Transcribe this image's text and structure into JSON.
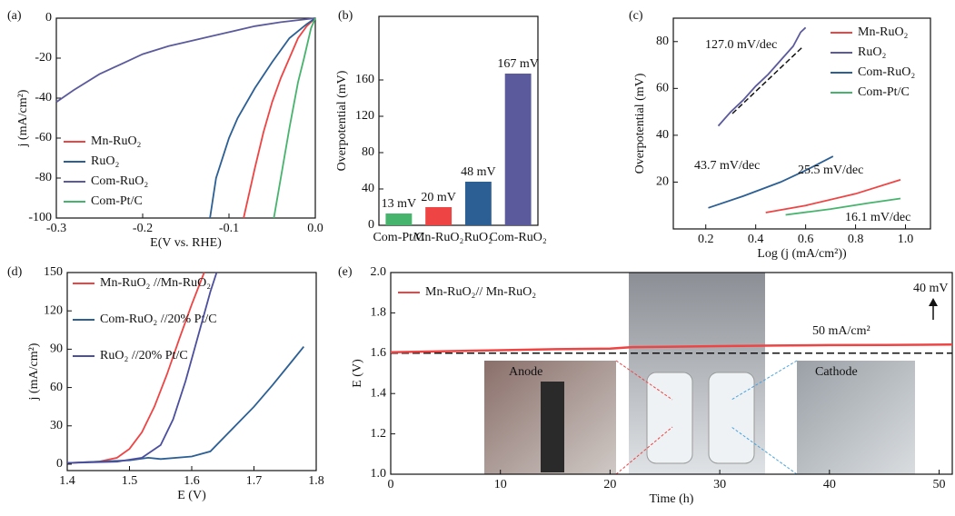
{
  "chart_data": [
    {
      "type": "line",
      "panel": "(a)",
      "x_label": "E(V vs. RHE)",
      "y_label": "j (mA/cm²)",
      "xlim": [
        -0.3,
        0.0
      ],
      "ylim": [
        -100,
        0
      ],
      "xticks": [
        -0.3,
        -0.2,
        -0.1,
        {
          "value": 0.0,
          "label": "0.0"
        }
      ],
      "yticks": [
        0,
        -20,
        -40,
        -60,
        -80,
        -100
      ],
      "legend": "lower left",
      "series": [
        {
          "name": "Mn-RuO₂",
          "color": "#ef4444",
          "x": [
            -0.083,
            -0.07,
            -0.06,
            -0.05,
            -0.04,
            -0.03,
            -0.02,
            -0.01,
            0
          ],
          "values": [
            -100,
            -75,
            -57,
            -42,
            -30,
            -20,
            -10,
            -4,
            0
          ]
        },
        {
          "name": "RuO₂",
          "color": "#2c5f94",
          "x": [
            -0.122,
            -0.115,
            -0.1,
            -0.09,
            -0.07,
            -0.05,
            -0.03,
            -0.01,
            0
          ],
          "values": [
            -100,
            -80,
            -60,
            -50,
            -35,
            -22,
            -10,
            -3,
            0
          ]
        },
        {
          "name": "Com-RuO₂",
          "color": "#5b5a9c",
          "x": [
            -0.3,
            -0.28,
            -0.25,
            -0.22,
            -0.2,
            -0.17,
            -0.15,
            -0.12,
            -0.1,
            -0.07,
            -0.04,
            0
          ],
          "values": [
            -42,
            -36,
            -28,
            -22,
            -18,
            -14,
            -12,
            -9,
            -7,
            -4,
            -2,
            0
          ]
        },
        {
          "name": "Com-Pt/C",
          "color": "#46b46c",
          "x": [
            -0.048,
            -0.04,
            -0.03,
            -0.02,
            -0.013,
            -0.005,
            0
          ],
          "values": [
            -100,
            -80,
            -55,
            -32,
            -20,
            -5,
            0
          ]
        }
      ]
    },
    {
      "type": "bar",
      "panel": "(b)",
      "y_label": "Overpotential (mV)",
      "ylim": [
        0,
        230
      ],
      "yticks": [
        0,
        40,
        80,
        120,
        160
      ],
      "categories": [
        "Com-Pt/C",
        "Mn-RuO₂",
        "RuO₂",
        "Com-RuO₂"
      ],
      "values": [
        13,
        20,
        48,
        167
      ],
      "value_labels": [
        "13 mV",
        "20 mV",
        "48 mV",
        "167 mV"
      ],
      "colors": [
        "#46b46c",
        "#ef4444",
        "#2c5f94",
        "#5b5a9c"
      ]
    },
    {
      "type": "line",
      "panel": "(c)",
      "x_label": "Log (j (mA/cm²))",
      "y_label": "Overpotential (mV)",
      "xlim": [
        0.07,
        1.1
      ],
      "ylim": [
        0,
        90
      ],
      "xticks": [
        0.2,
        0.4,
        0.6,
        0.8,
        {
          "value": 1.0,
          "label": "1.0"
        }
      ],
      "yticks": [
        20,
        40,
        60,
        80
      ],
      "legend": "upper right",
      "annotations": [
        "127.0 mV/dec",
        "43.7 mV/dec",
        "25.5 mV/dec",
        "16.1 mV/dec"
      ],
      "series": [
        {
          "name": "Mn-RuO₂",
          "color": "#ef4444",
          "x": [
            0.44,
            0.6,
            0.8,
            0.98
          ],
          "values": [
            7,
            10,
            15,
            21
          ]
        },
        {
          "name": "RuO₂",
          "color": "#5b5a9c",
          "x": [
            0.25,
            0.3,
            0.35,
            0.4,
            0.45,
            0.5,
            0.55,
            0.58,
            0.6
          ],
          "values": [
            44,
            50,
            55,
            61,
            66,
            72,
            78,
            84,
            86
          ]
        },
        {
          "name": "Com-RuO₂",
          "color": "#2c5f94",
          "x": [
            0.21,
            0.35,
            0.5,
            0.6,
            0.71
          ],
          "values": [
            9,
            14,
            20,
            25,
            31
          ]
        },
        {
          "name": "Com-Pt/C",
          "color": "#46b46c",
          "x": [
            0.52,
            0.7,
            0.85,
            0.98
          ],
          "values": [
            6,
            8.5,
            11,
            13
          ]
        }
      ]
    },
    {
      "type": "line",
      "panel": "(d)",
      "x_label": "E (V)",
      "y_label": "j (mA/cm²)",
      "xlim": [
        1.4,
        1.8
      ],
      "ylim": [
        -5,
        150
      ],
      "xticks": [
        1.4,
        1.5,
        1.6,
        1.7,
        1.8
      ],
      "yticks": [
        0,
        30,
        60,
        90,
        120,
        150
      ],
      "legend": "upper left",
      "series": [
        {
          "name": "Mn-RuO₂ //Mn-RuO₂",
          "color": "#ef4444",
          "x": [
            1.4,
            1.45,
            1.48,
            1.5,
            1.52,
            1.54,
            1.56,
            1.58,
            1.6,
            1.62
          ],
          "values": [
            1,
            2,
            5,
            12,
            25,
            45,
            70,
            98,
            125,
            150
          ]
        },
        {
          "name": "Com-RuO₂ //20% Pt/C",
          "color": "#2c5f94",
          "x": [
            1.4,
            1.5,
            1.53,
            1.55,
            1.6,
            1.63,
            1.66,
            1.7,
            1.73,
            1.76,
            1.78
          ],
          "values": [
            1,
            3,
            5,
            4,
            6,
            10,
            25,
            45,
            62,
            80,
            92
          ]
        },
        {
          "name": "RuO₂ //20% Pt/C",
          "color": "#4b4f9e",
          "x": [
            1.4,
            1.48,
            1.52,
            1.55,
            1.57,
            1.59,
            1.61,
            1.63,
            1.64
          ],
          "values": [
            1,
            2,
            5,
            15,
            35,
            65,
            100,
            135,
            150
          ]
        }
      ]
    },
    {
      "type": "line",
      "panel": "(e)",
      "x_label": "Time (h)",
      "y_label": "E (V)",
      "xlim": [
        0,
        51.2
      ],
      "ylim": [
        1.0,
        2.0
      ],
      "xticks": [
        0,
        10,
        20,
        30,
        40,
        50
      ],
      "yticks": [
        {
          "value": 1.0,
          "label": "1.0"
        },
        1.2,
        1.4,
        1.6,
        1.8,
        {
          "value": 2.0,
          "label": "2.0"
        }
      ],
      "legend": "upper left",
      "reference_line": 1.6,
      "annotations": [
        "50 mA/cm²",
        "40 mV"
      ],
      "photo_labels": [
        "Anode",
        "Cathode"
      ],
      "series": [
        {
          "name": "Mn-RuO₂// Mn-RuO₂",
          "color": "#ef4444",
          "x": [
            0,
            5,
            10,
            15,
            20,
            22,
            25,
            30,
            35,
            40,
            45,
            51.2
          ],
          "values": [
            1.605,
            1.61,
            1.615,
            1.62,
            1.623,
            1.63,
            1.632,
            1.635,
            1.638,
            1.64,
            1.641,
            1.643
          ]
        }
      ]
    }
  ]
}
